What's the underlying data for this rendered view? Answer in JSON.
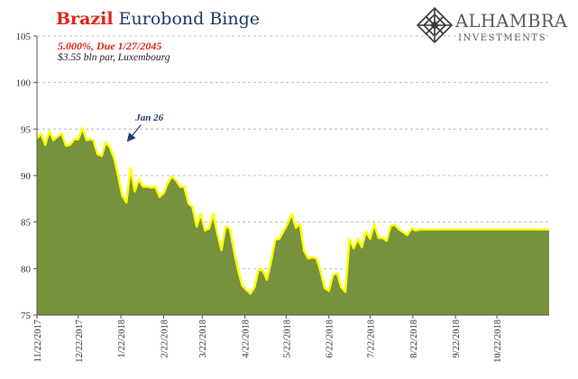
{
  "title": {
    "part1": "Brazil",
    "part2": "Eurobond Binge"
  },
  "subtitle": {
    "line1": "5.000%, Due 1/27/2045",
    "line2": "$3.55 bln par, Luxembourg"
  },
  "logo": {
    "name": "ALHAMBRA",
    "tagline": "INVESTMENTS",
    "icon": "alhambra-diamond-lattice-icon"
  },
  "colors": {
    "fill": "#76923c",
    "line": "#ffff00",
    "title_red": "#e2231a",
    "title_blue": "#1f3a6e",
    "annotation": "#1f3a6e",
    "grid": "#b0b0b0"
  },
  "chart_data": {
    "type": "area",
    "title": "Brazil Eurobond Binge",
    "xlabel": "",
    "ylabel": "",
    "ylim": [
      75,
      105
    ],
    "yticks": [
      75,
      80,
      85,
      90,
      95,
      100,
      105
    ],
    "ytick_labels": [
      "75",
      "80",
      "85",
      "90",
      "95",
      "100",
      "105"
    ],
    "xlim": [
      "2017-11-22",
      "2018-11-29"
    ],
    "xticks": [
      "2017-11-22",
      "2017-12-22",
      "2018-01-22",
      "2018-02-22",
      "2018-03-22",
      "2018-04-22",
      "2018-05-22",
      "2018-06-22",
      "2018-07-22",
      "2018-08-22",
      "2018-09-22",
      "2018-10-22"
    ],
    "xtick_labels": [
      "11/22/2017",
      "12/22/2017",
      "1/22/2018",
      "2/22/2018",
      "3/22/2018",
      "4/22/2018",
      "5/22/2018",
      "6/22/2018",
      "7/22/2018",
      "8/22/2018",
      "9/22/2018",
      "10/22/2018"
    ],
    "grid": "horizontal dashed",
    "legend": "none",
    "annotation": {
      "label": "Jan 26",
      "x": "2018-01-26",
      "y": 93.5
    },
    "series": [
      {
        "x": [
          "2017-11-22",
          "2017-11-25",
          "2017-11-28",
          "2017-12-01",
          "2017-12-04",
          "2017-12-07",
          "2017-12-10",
          "2017-12-13",
          "2017-12-16",
          "2017-12-19",
          "2017-12-22",
          "2017-12-25",
          "2017-12-28",
          "2017-12-31",
          "2018-01-02",
          "2018-01-05",
          "2018-01-08",
          "2018-01-11",
          "2018-01-14",
          "2018-01-17",
          "2018-01-20",
          "2018-01-23",
          "2018-01-26",
          "2018-01-29",
          "2018-02-01",
          "2018-02-04",
          "2018-02-07",
          "2018-02-10",
          "2018-02-13",
          "2018-02-16",
          "2018-02-19",
          "2018-02-22",
          "2018-02-25",
          "2018-02-28",
          "2018-03-03",
          "2018-03-06",
          "2018-03-09",
          "2018-03-12",
          "2018-03-15",
          "2018-03-18",
          "2018-03-21",
          "2018-03-24",
          "2018-03-27",
          "2018-03-30",
          "2018-04-02",
          "2018-04-05",
          "2018-04-08",
          "2018-04-11",
          "2018-04-14",
          "2018-04-17",
          "2018-04-20",
          "2018-04-23",
          "2018-04-26",
          "2018-04-29",
          "2018-05-02",
          "2018-05-05",
          "2018-05-08",
          "2018-05-11",
          "2018-05-14",
          "2018-05-17",
          "2018-05-20",
          "2018-05-23",
          "2018-05-26",
          "2018-05-29",
          "2018-06-01",
          "2018-06-04",
          "2018-06-07",
          "2018-06-10",
          "2018-06-13",
          "2018-06-16",
          "2018-06-19",
          "2018-06-22",
          "2018-06-25",
          "2018-06-28",
          "2018-07-01",
          "2018-07-04",
          "2018-07-07",
          "2018-07-10",
          "2018-07-13",
          "2018-07-16",
          "2018-07-19",
          "2018-07-22",
          "2018-07-25",
          "2018-07-28",
          "2018-07-31",
          "2018-08-03",
          "2018-08-06",
          "2018-08-09",
          "2018-08-12",
          "2018-08-15",
          "2018-08-18",
          "2018-08-21",
          "2018-08-24",
          "2018-08-27",
          "2018-08-30",
          "2018-09-02",
          "2018-09-05",
          "2018-09-08",
          "2018-09-11",
          "2018-09-14",
          "2018-09-17",
          "2018-09-20",
          "2018-09-23",
          "2018-09-26",
          "2018-09-29",
          "2018-10-02",
          "2018-10-05",
          "2018-10-08",
          "2018-10-11",
          "2018-10-14",
          "2018-10-17",
          "2018-10-20",
          "2018-10-23",
          "2018-10-26",
          "2018-10-29",
          "2018-11-01",
          "2018-11-04",
          "2018-11-07",
          "2018-11-10",
          "2018-11-13",
          "2018-11-16",
          "2018-11-19",
          "2018-11-22",
          "2018-11-25",
          "2018-11-29"
        ],
        "values": [
          94.0,
          94.5,
          93.3,
          94.8,
          93.8,
          94.2,
          94.5,
          93.2,
          93.3,
          93.9,
          93.9,
          95.1,
          93.8,
          93.9,
          93.8,
          92.3,
          92.1,
          93.6,
          93.0,
          91.9,
          89.9,
          87.8,
          87.1,
          90.8,
          88.3,
          89.6,
          88.8,
          88.8,
          88.7,
          88.8,
          87.7,
          88.1,
          89.2,
          89.9,
          89.5,
          88.8,
          88.8,
          87.0,
          86.6,
          84.5,
          85.9,
          84.1,
          84.3,
          85.9,
          83.8,
          82.0,
          84.5,
          84.3,
          82.0,
          79.9,
          78.2,
          77.7,
          77.3,
          78.0,
          79.9,
          79.8,
          78.8,
          80.8,
          83.1,
          83.2,
          84.0,
          84.8,
          85.9,
          84.4,
          84.8,
          81.9,
          81.1,
          81.2,
          81.1,
          79.7,
          77.9,
          77.6,
          79.3,
          79.5,
          78.0,
          77.5,
          83.2,
          82.2,
          83.2,
          82.3,
          84.0,
          83.2,
          84.8,
          83.3,
          83.3,
          83.0,
          84.6,
          84.7,
          84.2,
          83.9,
          83.6,
          84.3,
          84.1,
          84.2,
          84.2,
          84.2,
          84.2,
          84.2,
          84.2,
          84.2,
          84.2,
          84.2,
          84.2,
          84.2,
          84.2,
          84.2,
          84.2,
          84.2,
          84.2,
          84.2,
          84.2,
          84.2,
          84.2,
          84.2,
          84.2,
          84.2,
          84.2,
          84.2,
          84.2,
          84.2,
          84.2,
          84.2,
          84.2,
          84.2,
          84.2
        ]
      }
    ]
  }
}
